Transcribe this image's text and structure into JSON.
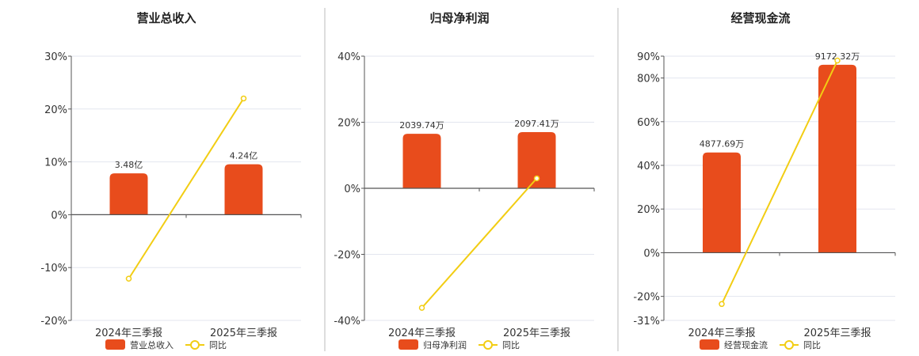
{
  "colors": {
    "bar": "#e84c1c",
    "line": "#f2cd13",
    "grid": "#e3e6ef",
    "axis": "#555555",
    "divider": "#bbbbbb"
  },
  "chart_data": [
    {
      "type": "bar",
      "title": "营业总收入",
      "categories": [
        "2024年三季报",
        "2025年三季报"
      ],
      "bar_axis": {
        "min": 0,
        "max": 1
      },
      "bars": {
        "name": "营业总收入",
        "heights": [
          0.2085,
          0.2545
        ],
        "labels": [
          "3.48亿",
          "4.24亿"
        ]
      },
      "line": {
        "name": "同比",
        "values": [
          -12.1,
          22.0
        ]
      },
      "ylim": [
        -20,
        30
      ],
      "yticks": [
        30,
        20,
        10,
        0,
        -10,
        -20
      ],
      "ytick_labels": [
        "30%",
        "20%",
        "10%",
        "0%",
        "-10%",
        "-20%"
      ]
    },
    {
      "type": "bar",
      "title": "归母净利润",
      "categories": [
        "2024年三季报",
        "2025年三季报"
      ],
      "bar_axis": {
        "min": 0,
        "max": 1
      },
      "bars": {
        "name": "归母净利润",
        "heights": [
          0.33,
          0.34
        ],
        "labels": [
          "2039.74万",
          "2097.41万"
        ]
      },
      "line": {
        "name": "同比",
        "values": [
          -36.2,
          3.0
        ]
      },
      "ylim": [
        -40,
        40
      ],
      "yticks": [
        40,
        20,
        0,
        -20,
        -40
      ],
      "ytick_labels": [
        "40%",
        "20%",
        "0%",
        "-20%",
        "-40%"
      ]
    },
    {
      "type": "bar",
      "title": "经营现金流",
      "categories": [
        "2024年三季报",
        "2025年三季报"
      ],
      "bar_axis": {
        "min": 0,
        "max": 1
      },
      "bars": {
        "name": "经营现金流",
        "heights": [
          0.408,
          0.765
        ],
        "labels": [
          "4877.69万",
          "9172.32万"
        ]
      },
      "line": {
        "name": "同比",
        "values": [
          -23.5,
          88.0
        ]
      },
      "ylim": [
        -31,
        90
      ],
      "yticks": [
        90,
        80,
        60,
        40,
        20,
        0,
        -20,
        -31
      ],
      "ytick_labels": [
        "90%",
        "80%",
        "60%",
        "40%",
        "20%",
        "0%",
        "-20%",
        "-31%"
      ]
    }
  ]
}
